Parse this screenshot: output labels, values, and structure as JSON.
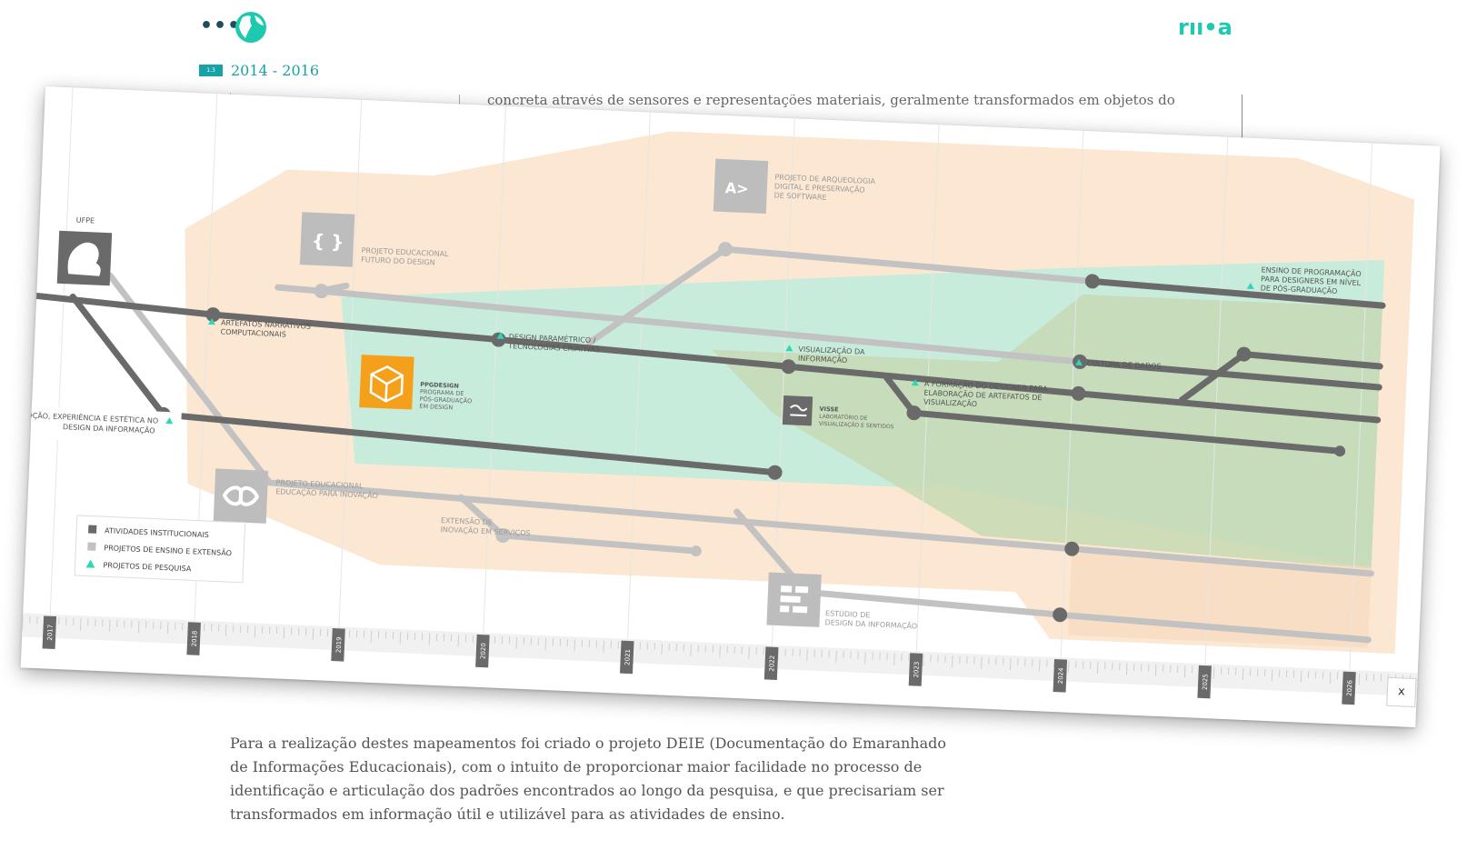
{
  "header": {
    "menu_glyph": "•••",
    "globe_icon": "globe-icon",
    "brand_glyph": "rıı•a",
    "chapter_number": "1.3",
    "chapter_title": "2014 - 2016"
  },
  "background_article": {
    "text": "concreta através de sensores e representações materiais, geralmente transformados em objetos do cotidiano"
  },
  "diagram": {
    "colors": {
      "institutional": "#6a6a6a",
      "teaching": "#c2c2c2",
      "research": "#2ed8b6",
      "zone_peach": "#fbe7d2",
      "zone_mint": "#c7ecdc",
      "zone_olive": "#c7d9b4",
      "ppgdesign": "#f5a01b"
    },
    "years": [
      "2017",
      "2018",
      "2019",
      "2020",
      "2021",
      "2022",
      "2023",
      "2024",
      "2025",
      "2026"
    ],
    "legend": [
      {
        "label": "ATIVIDADES INSTITUCIONAIS",
        "type": "square",
        "color": "#6a6a6a"
      },
      {
        "label": "PROJETOS DE ENSINO E EXTENSÃO",
        "type": "square",
        "color": "#c2c2c2"
      },
      {
        "label": "PROJETOS DE PESQUISA",
        "type": "triangle",
        "color": "#2ed8b6"
      }
    ],
    "ufpe_label": "UFPE",
    "ppgdesign": {
      "title": "PPGDESIGN",
      "subtitle": [
        "PROGRAMA DE",
        "PÓS-GRADUAÇÃO",
        "EM DESIGN"
      ]
    },
    "visse": {
      "title": "VISSE",
      "subtitle": [
        "LABORATÓRIO DE",
        "VISUALIZAÇÃO E SENTIDOS"
      ]
    },
    "projects": [
      {
        "lines": [
          "PROJETO EDUCACIONAL",
          "FUTURO DO DESIGN"
        ],
        "icon": "{ }",
        "kind": "teaching"
      },
      {
        "lines": [
          "PROJETO DE ARQUEOLOGIA",
          "DIGITAL E PRESERVAÇÃO",
          "DE SOFTWARE"
        ],
        "icon": "A>",
        "kind": "teaching"
      },
      {
        "lines": [
          "PROJETO EDUCACIONAL",
          "EDUCAÇÃO PARA INOVAÇÃO"
        ],
        "icon": "infinity",
        "kind": "teaching"
      },
      {
        "lines": [
          "EXTENSÃO DE",
          "INOVAÇÃO EM SERVIÇOS"
        ],
        "icon": "",
        "kind": "teaching"
      },
      {
        "lines": [
          "ESTÚDIO DE",
          "DESIGN DA INFORMAÇÃO"
        ],
        "icon": "grid",
        "kind": "teaching"
      }
    ],
    "research": [
      {
        "lines": [
          "ARTEFATOS NARRATIVOS",
          "COMPUTACIONAIS"
        ]
      },
      {
        "lines": [
          "DESIGN PARAMÉTRICO /",
          "TECNOLOGIAS CRIATIVAS"
        ]
      },
      {
        "lines": [
          "VISUALIZAÇÃO DA",
          "INFORMAÇÃO"
        ]
      },
      {
        "lines": [
          "CULTURA DE DADOS"
        ]
      },
      {
        "lines": [
          "A FORMAÇÃO DO DESIGNER PARA",
          "ELABORAÇÃO DE ARTEFATOS DE",
          "VISUALIZAÇÃO"
        ]
      },
      {
        "lines": [
          "ENSINO DE PROGRAMAÇÃO",
          "PARA DESIGNERS EM NÍVEL",
          "DE PÓS-GRADUAÇÃO"
        ]
      },
      {
        "lines": [
          "OÇÃO, EXPERIÊNCIA E ESTÉTICA NO",
          "DESIGN DA INFORMAÇÃO"
        ]
      }
    ],
    "close_label": "x"
  },
  "paragraph": "Para a realização destes mapeamentos foi criado o projeto DEIE (Documentação do Emaranhado de Informações Educacionais), com o intuito de proporcionar maior facilidade no processo de identificação e articulação dos padrões encontrados ao longo da pesquisa, e que precisariam ser transformados em informação útil e utilizável para as atividades de ensino."
}
